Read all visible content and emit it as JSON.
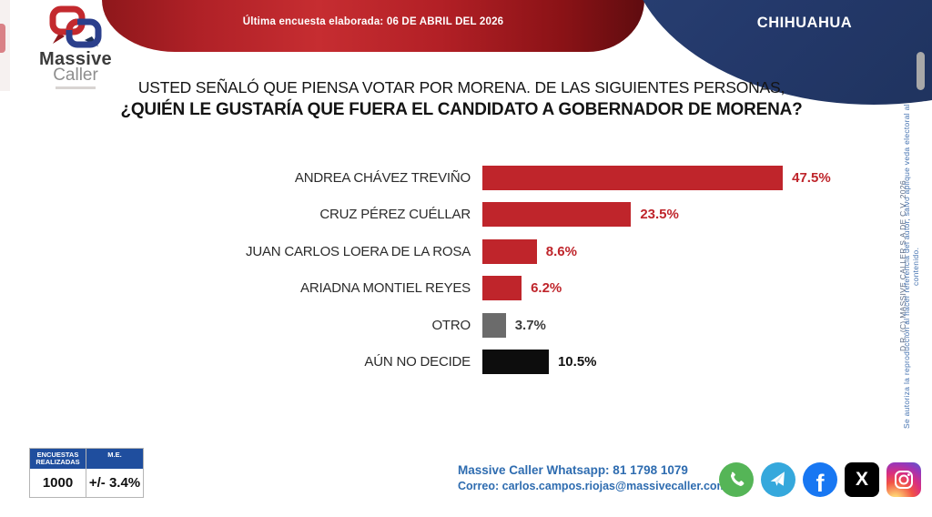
{
  "header": {
    "banner_text": "Última encuesta elaborada: 06 DE ABRIL DEL 2026",
    "state_label": "CHIHUAHUA",
    "logo_line1": "Massive",
    "logo_line2": "Caller"
  },
  "title": {
    "line1": "USTED SEÑALÓ QUE PIENSA VOTAR POR MORENA. DE LAS SIGUIENTES PERSONAS,",
    "line2": "¿QUIÉN LE GUSTARÍA QUE FUERA EL CANDIDATO A GOBERNADOR DE MORENA?"
  },
  "chart_data": {
    "type": "bar",
    "orientation": "horizontal",
    "title": "¿QUIÉN LE GUSTARÍA QUE FUERA EL CANDIDATO A GOBERNADOR DE MORENA?",
    "categories": [
      "ANDREA CHÁVEZ TREVIÑO",
      "CRUZ PÉREZ CUÉLLAR",
      "JUAN CARLOS LOERA DE LA ROSA",
      "ARIADNA MONTIEL REYES",
      "OTRO",
      "AÚN NO DECIDE"
    ],
    "values": [
      47.5,
      23.5,
      8.6,
      6.2,
      3.7,
      10.5
    ],
    "value_labels": [
      "47.5%",
      "23.5%",
      "8.6%",
      "6.2%",
      "3.7%",
      "10.5%"
    ],
    "bar_colors": [
      "#bf252b",
      "#bf252b",
      "#bf252b",
      "#bf252b",
      "#6b6b6b",
      "#0d0d0d"
    ],
    "value_colors": [
      "#bf252b",
      "#bf252b",
      "#bf252b",
      "#bf252b",
      "#3c3c3c",
      "#111111"
    ],
    "xlim": [
      0,
      50
    ],
    "grid": false,
    "legend": "none"
  },
  "stats_table": {
    "col1_header": "ENCUESTAS REALIZADAS",
    "col2_header": "M.E.",
    "col1_value": "1000",
    "col2_value": "+/- 3.4%"
  },
  "footer": {
    "whatsapp_line": "Massive Caller Whatsapp: 81 1798 1079",
    "email_line": "Correo: carlos.campos.riojas@massivecaller.com",
    "social": [
      "whatsapp-icon",
      "telegram-icon",
      "facebook-icon",
      "x-icon",
      "instagram-icon"
    ]
  },
  "side_notes": {
    "copyright": "D.R. (C) MASSIVE CALLER S.A DE C.V. 2026",
    "disclaimer": "Se autoriza la reproducción al hacer referencia del autor, salvo aplique veda electoral al contenido."
  },
  "colors": {
    "brand_red": "#bf252b",
    "ribbon_red": "#b02127",
    "navy": "#24396b",
    "table_header_blue": "#1f4e9e",
    "contact_blue": "#2e6cb0",
    "gray_bar": "#6b6b6b",
    "black_bar": "#0d0d0d"
  }
}
